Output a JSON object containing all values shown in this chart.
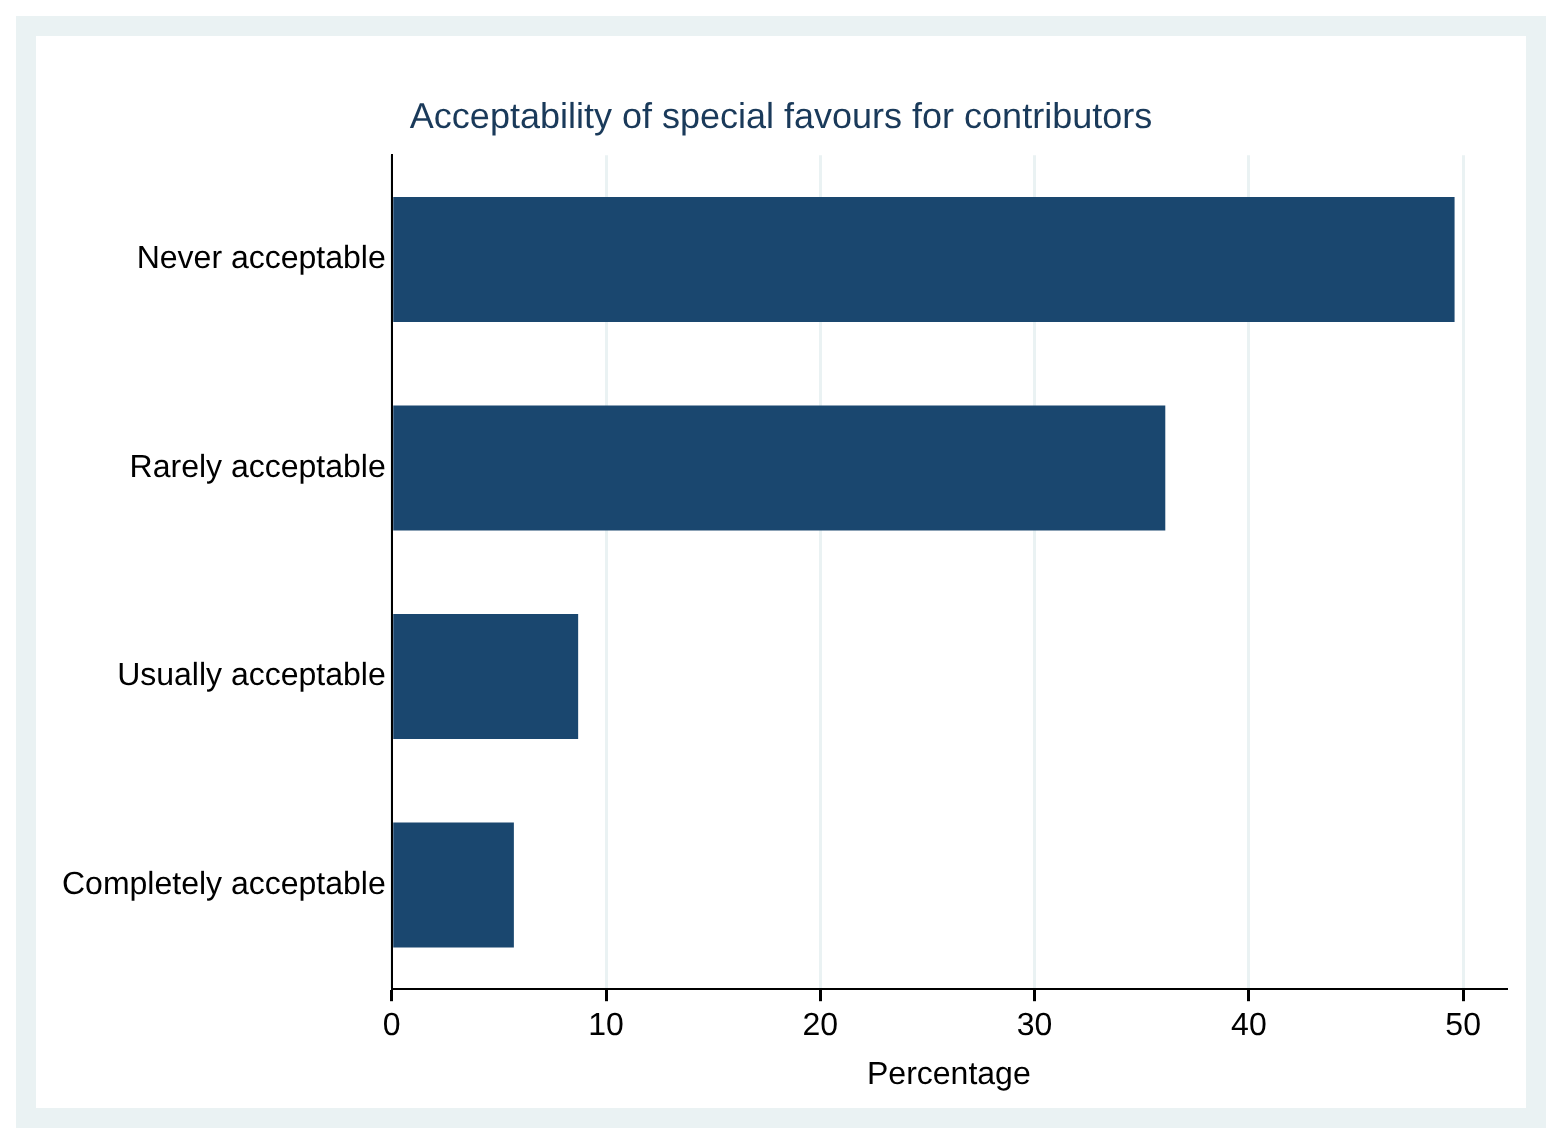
{
  "chart_data": {
    "type": "bar",
    "orientation": "horizontal",
    "title": "Acceptability of special favours for contributors",
    "xlabel": "Percentage",
    "categories": [
      "Never acceptable",
      "Rarely acceptable",
      "Usually acceptable",
      "Completely acceptable"
    ],
    "values": [
      49.6,
      36.1,
      8.7,
      5.7
    ],
    "color": "#1a476f",
    "xlim": [
      0,
      52
    ],
    "xticks": [
      0,
      10,
      20,
      30,
      40,
      50
    ],
    "grid": "x",
    "legend": false
  }
}
